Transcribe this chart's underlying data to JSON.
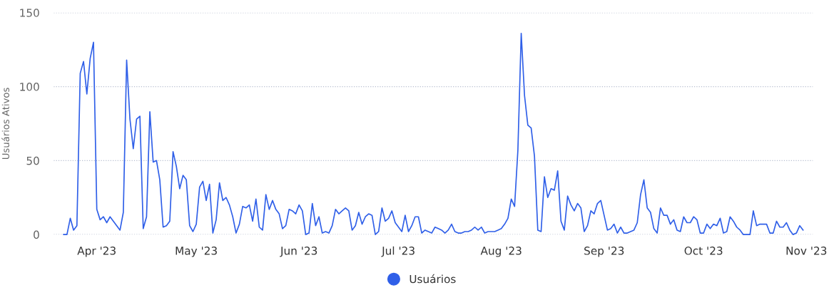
{
  "chart_data": {
    "type": "line",
    "ylabel": "Usuários Ativos",
    "legend": "bottom",
    "grid": "y",
    "marker": "none",
    "line_style": "solid",
    "ylim": [
      0,
      150
    ],
    "yticks": [
      0,
      50,
      100,
      150
    ],
    "xlim": [
      "2023-03-19",
      "2023-11-03"
    ],
    "xticks": [
      {
        "value": "2023-04-01",
        "label": "Apr '23"
      },
      {
        "value": "2023-05-01",
        "label": "May '23"
      },
      {
        "value": "2023-06-01",
        "label": "Jun '23"
      },
      {
        "value": "2023-07-01",
        "label": "Jul '23"
      },
      {
        "value": "2023-08-01",
        "label": "Aug '23"
      },
      {
        "value": "2023-09-01",
        "label": "Sep '23"
      },
      {
        "value": "2023-10-01",
        "label": "Oct '23"
      },
      {
        "value": "2023-11-01",
        "label": "Nov '23"
      }
    ],
    "series": [
      {
        "name": "Usuários",
        "color": "#2f5fe8",
        "x": [
          "2023-03-22",
          "2023-03-23",
          "2023-03-24",
          "2023-03-25",
          "2023-03-26",
          "2023-03-27",
          "2023-03-28",
          "2023-03-29",
          "2023-03-30",
          "2023-03-31",
          "2023-04-01",
          "2023-04-02",
          "2023-04-03",
          "2023-04-04",
          "2023-04-05",
          "2023-04-08",
          "2023-04-09",
          "2023-04-10",
          "2023-04-11",
          "2023-04-12",
          "2023-04-13",
          "2023-04-14",
          "2023-04-15",
          "2023-04-16",
          "2023-04-17",
          "2023-04-18",
          "2023-04-19",
          "2023-04-20",
          "2023-04-21",
          "2023-04-22",
          "2023-04-23",
          "2023-04-24",
          "2023-04-25",
          "2023-04-26",
          "2023-04-27",
          "2023-04-28",
          "2023-04-29",
          "2023-04-30",
          "2023-05-01",
          "2023-05-02",
          "2023-05-03",
          "2023-05-04",
          "2023-05-05",
          "2023-05-06",
          "2023-05-07",
          "2023-05-08",
          "2023-05-09",
          "2023-05-10",
          "2023-05-11",
          "2023-05-12",
          "2023-05-13",
          "2023-05-14",
          "2023-05-15",
          "2023-05-16",
          "2023-05-17",
          "2023-05-18",
          "2023-05-19",
          "2023-05-20",
          "2023-05-21",
          "2023-05-22",
          "2023-05-23",
          "2023-05-24",
          "2023-05-25",
          "2023-05-26",
          "2023-05-27",
          "2023-05-28",
          "2023-05-29",
          "2023-05-30",
          "2023-05-31",
          "2023-06-01",
          "2023-06-02",
          "2023-06-03",
          "2023-06-04",
          "2023-06-05",
          "2023-06-06",
          "2023-06-07",
          "2023-06-08",
          "2023-06-09",
          "2023-06-10",
          "2023-06-11",
          "2023-06-12",
          "2023-06-13",
          "2023-06-14",
          "2023-06-15",
          "2023-06-16",
          "2023-06-17",
          "2023-06-18",
          "2023-06-19",
          "2023-06-20",
          "2023-06-21",
          "2023-06-22",
          "2023-06-23",
          "2023-06-24",
          "2023-06-25",
          "2023-06-26",
          "2023-06-27",
          "2023-06-28",
          "2023-06-29",
          "2023-06-30",
          "2023-07-02",
          "2023-07-03",
          "2023-07-04",
          "2023-07-05",
          "2023-07-06",
          "2023-07-07",
          "2023-07-08",
          "2023-07-09",
          "2023-07-10",
          "2023-07-11",
          "2023-07-12",
          "2023-07-13",
          "2023-07-14",
          "2023-07-15",
          "2023-07-16",
          "2023-07-17",
          "2023-07-18",
          "2023-07-19",
          "2023-07-20",
          "2023-07-21",
          "2023-07-22",
          "2023-07-23",
          "2023-07-24",
          "2023-07-25",
          "2023-07-26",
          "2023-07-27",
          "2023-07-28",
          "2023-07-30",
          "2023-07-31",
          "2023-08-01",
          "2023-08-02",
          "2023-08-03",
          "2023-08-04",
          "2023-08-05",
          "2023-08-06",
          "2023-08-07",
          "2023-08-08",
          "2023-08-09",
          "2023-08-10",
          "2023-08-11",
          "2023-08-12",
          "2023-08-13",
          "2023-08-14",
          "2023-08-15",
          "2023-08-16",
          "2023-08-17",
          "2023-08-18",
          "2023-08-19",
          "2023-08-20",
          "2023-08-21",
          "2023-08-22",
          "2023-08-23",
          "2023-08-24",
          "2023-08-25",
          "2023-08-26",
          "2023-08-27",
          "2023-08-28",
          "2023-08-29",
          "2023-08-30",
          "2023-08-31",
          "2023-09-01",
          "2023-09-02",
          "2023-09-03",
          "2023-09-04",
          "2023-09-05",
          "2023-09-06",
          "2023-09-07",
          "2023-09-08",
          "2023-09-09",
          "2023-09-10",
          "2023-09-11",
          "2023-09-12",
          "2023-09-13",
          "2023-09-14",
          "2023-09-15",
          "2023-09-16",
          "2023-09-17",
          "2023-09-18",
          "2023-09-19",
          "2023-09-20",
          "2023-09-21",
          "2023-09-22",
          "2023-09-23",
          "2023-09-24",
          "2023-09-25",
          "2023-09-26",
          "2023-09-27",
          "2023-09-28",
          "2023-09-29",
          "2023-09-30",
          "2023-10-01",
          "2023-10-02",
          "2023-10-03",
          "2023-10-04",
          "2023-10-05",
          "2023-10-06",
          "2023-10-07",
          "2023-10-08",
          "2023-10-09",
          "2023-10-10",
          "2023-10-11",
          "2023-10-12",
          "2023-10-13",
          "2023-10-14",
          "2023-10-15",
          "2023-10-16",
          "2023-10-17",
          "2023-10-18",
          "2023-10-19",
          "2023-10-20",
          "2023-10-21",
          "2023-10-22",
          "2023-10-23",
          "2023-10-24",
          "2023-10-25",
          "2023-10-26",
          "2023-10-27",
          "2023-10-28",
          "2023-10-29",
          "2023-10-30",
          "2023-10-31"
        ],
        "values": [
          0,
          0,
          11,
          3,
          6,
          109,
          117,
          95,
          119,
          130,
          17,
          10,
          12,
          8,
          12,
          3,
          15,
          118,
          78,
          58,
          78,
          80,
          4,
          12,
          83,
          49,
          50,
          37,
          5,
          6,
          9,
          56,
          46,
          31,
          40,
          37,
          6,
          2,
          7,
          32,
          36,
          23,
          34,
          1,
          10,
          35,
          23,
          25,
          20,
          12,
          1,
          7,
          19,
          18,
          20,
          9,
          24,
          5,
          3,
          27,
          17,
          23,
          17,
          14,
          4,
          6,
          17,
          16,
          14,
          20,
          16,
          0,
          1,
          21,
          6,
          12,
          1,
          2,
          1,
          6,
          17,
          14,
          16,
          18,
          16,
          3,
          6,
          15,
          7,
          12,
          14,
          13,
          0,
          2,
          18,
          9,
          11,
          16,
          8,
          2,
          13,
          2,
          6,
          12,
          12,
          1,
          3,
          2,
          1,
          5,
          4,
          3,
          1,
          3,
          7,
          2,
          1,
          1,
          2,
          2,
          3,
          5,
          3,
          5,
          1,
          2,
          2,
          3,
          4,
          7,
          11,
          24,
          19,
          57,
          136,
          94,
          74,
          72,
          53,
          3,
          2,
          39,
          25,
          31,
          30,
          43,
          9,
          3,
          26,
          20,
          16,
          21,
          18,
          2,
          6,
          16,
          14,
          21,
          23,
          13,
          3,
          4,
          7,
          1,
          5,
          1,
          1,
          2,
          3,
          8,
          27,
          37,
          18,
          15,
          4,
          1,
          18,
          13,
          13,
          7,
          10,
          3,
          2,
          12,
          8,
          8,
          12,
          10,
          1,
          1,
          7,
          4,
          7,
          6,
          11,
          1,
          2,
          12,
          9,
          5,
          3,
          0,
          0,
          0,
          16,
          6,
          7,
          7,
          7,
          1,
          1,
          9,
          5,
          5,
          8,
          3,
          0,
          1,
          6,
          3
        ]
      }
    ]
  }
}
